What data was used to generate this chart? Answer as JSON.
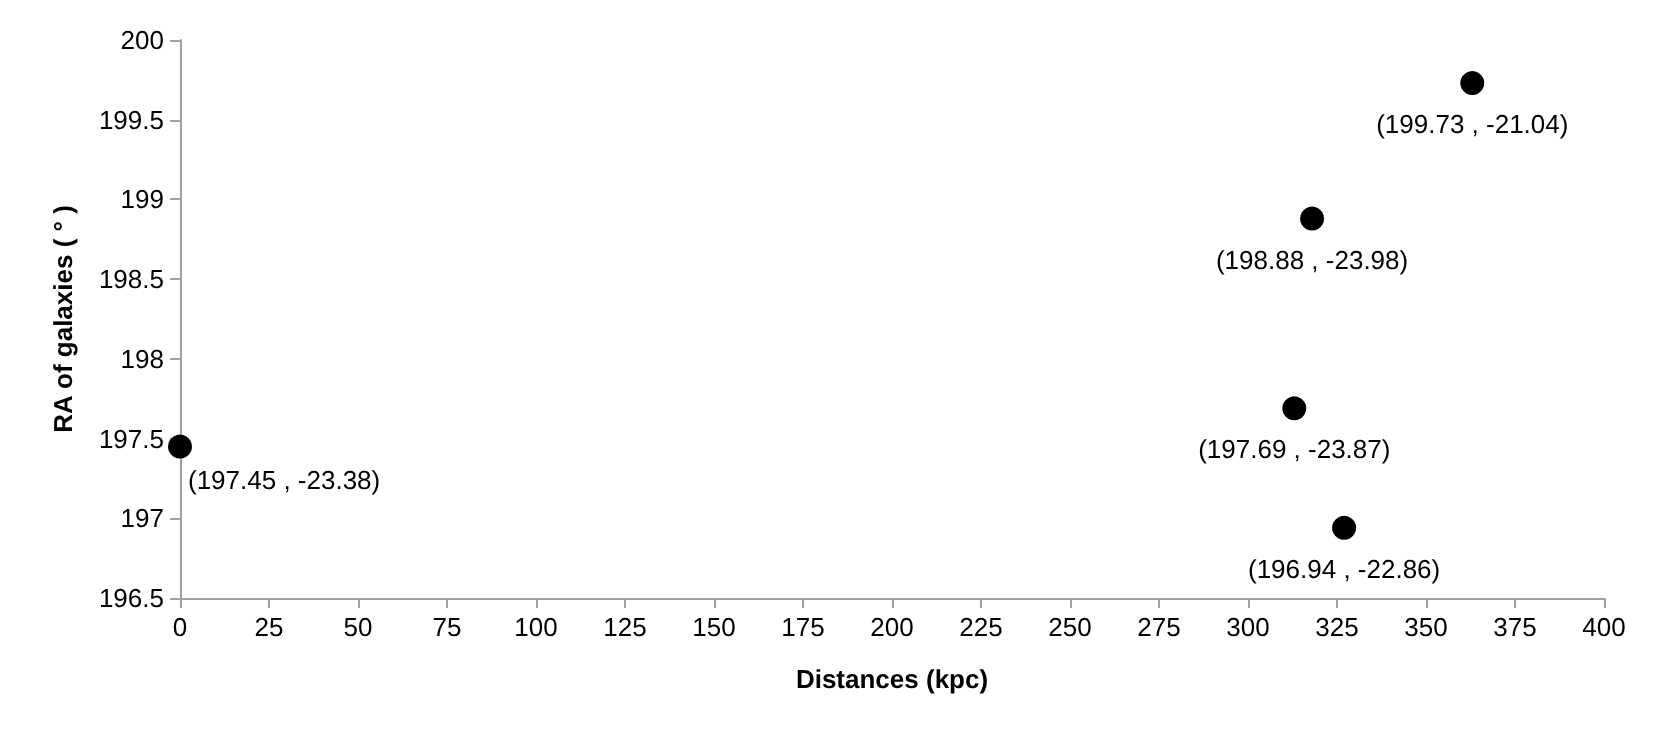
{
  "chart_data": {
    "type": "scatter",
    "xlabel": "Distances (kpc)",
    "ylabel": "RA of galaxies ( ° )",
    "x": [
      0,
      313,
      318,
      327,
      363
    ],
    "values": [
      197.45,
      197.69,
      198.88,
      196.94,
      199.73
    ],
    "value_labels": [
      "(197.45 , -23.38)",
      "(197.69 , -23.87)",
      "(198.88 , -23.98)",
      "(196.94 , -22.86)",
      "(199.73 , -21.04)"
    ],
    "color": "#000000",
    "marker": "circle",
    "grid": false,
    "xlim": [
      0,
      400
    ],
    "xticks": [
      0,
      25,
      50,
      75,
      100,
      125,
      150,
      175,
      200,
      225,
      250,
      275,
      300,
      325,
      350,
      375,
      400
    ],
    "ylim": [
      196.5,
      200
    ],
    "yticks": [
      196.5,
      197,
      197.5,
      198,
      198.5,
      199,
      199.5,
      200
    ]
  }
}
